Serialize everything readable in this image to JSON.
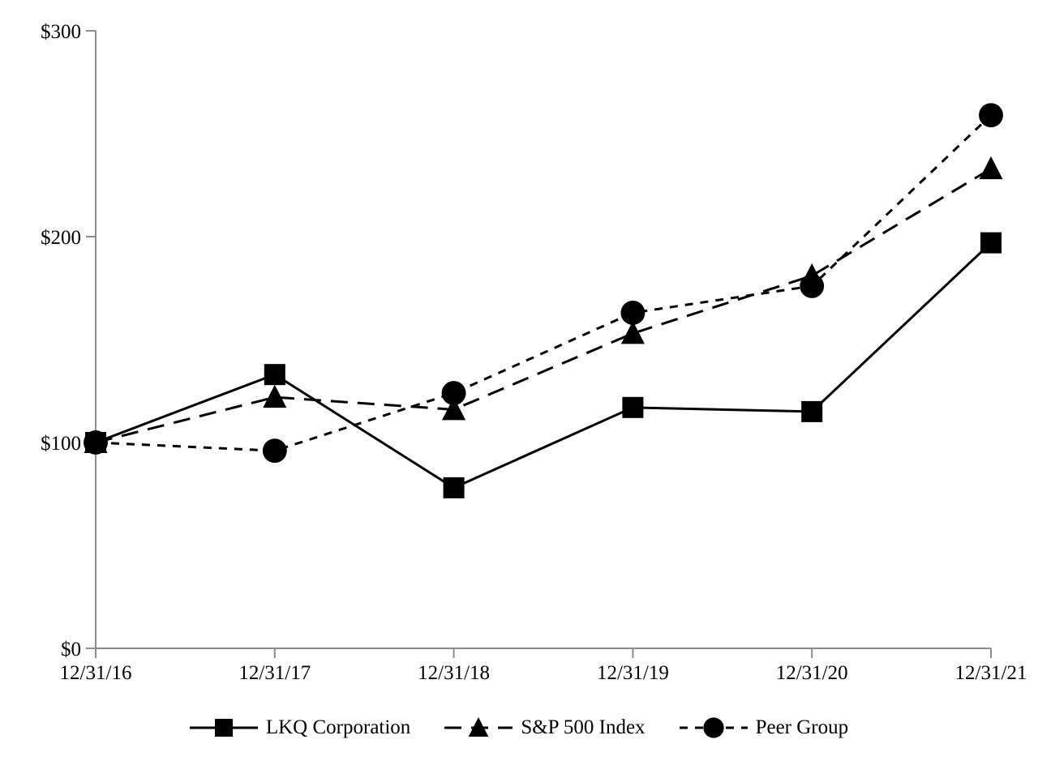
{
  "chart_data": {
    "type": "line",
    "title": "",
    "categories": [
      "12/31/16",
      "12/31/17",
      "12/31/18",
      "12/31/19",
      "12/31/20",
      "12/31/21"
    ],
    "series": [
      {
        "name": "LKQ Corporation",
        "values": [
          100,
          133,
          78,
          117,
          115,
          197
        ],
        "marker": "square",
        "line_style": "solid"
      },
      {
        "name": "S&P 500 Index",
        "values": [
          100,
          122,
          116,
          153,
          181,
          233
        ],
        "marker": "triangle",
        "line_style": "long-dash"
      },
      {
        "name": "Peer Group",
        "values": [
          100,
          96,
          124,
          163,
          176,
          259
        ],
        "marker": "circle",
        "line_style": "short-dash"
      }
    ],
    "y_axis": {
      "min": 0,
      "max": 300,
      "tick_interval": 100,
      "tick_labels": [
        "$0",
        "$100",
        "$200",
        "$300"
      ]
    },
    "x_axis": {
      "label": ""
    },
    "legend_position": "bottom",
    "grid": false
  },
  "colors": {
    "series": "#000000",
    "axis": "#8c8c8c",
    "background": "#ffffff",
    "text": "#000000"
  }
}
